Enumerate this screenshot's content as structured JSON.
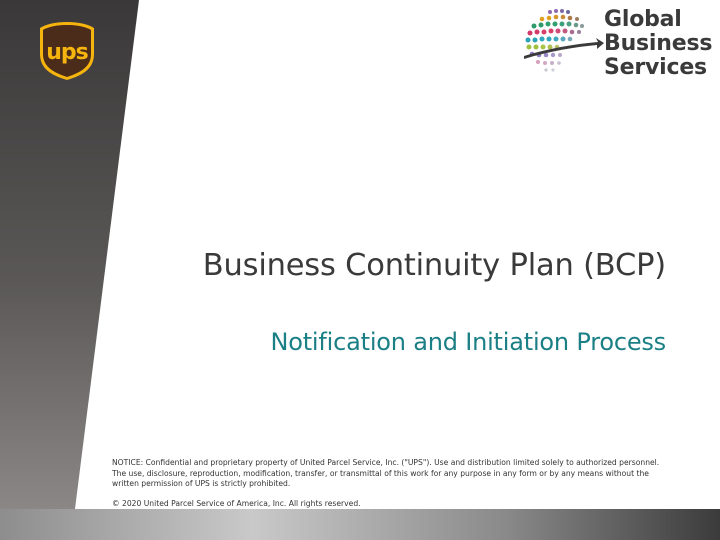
{
  "slide": {
    "title": "Business Continuity Plan (BCP)",
    "subtitle": "Notification and Initiation Process",
    "notice": "NOTICE: Confidential and proprietary property of United Parcel Service, Inc. (\"UPS\"). Use and distribution limited solely to authorized personnel. The use, disclosure, reproduction, modification, transfer, or transmittal of this work for any purpose in any form or by any means without the written permission of UPS is strictly prohibited.",
    "copyright": "© 2020 United Parcel Service of America, Inc. All rights reserved."
  },
  "logos": {
    "ups": {
      "text": "ups",
      "icon": "ups-shield-logo",
      "colors": {
        "shield": "#4b2c1a",
        "gold": "#f6b40e"
      }
    },
    "gbs": {
      "line1": "Global",
      "line2": "Business",
      "line3": "Services",
      "icon": "globe-dots-logo"
    }
  },
  "colors": {
    "title": "#3a3a3a",
    "subtitle": "#1b7f86",
    "panel_dark": "#3c3c3c"
  }
}
